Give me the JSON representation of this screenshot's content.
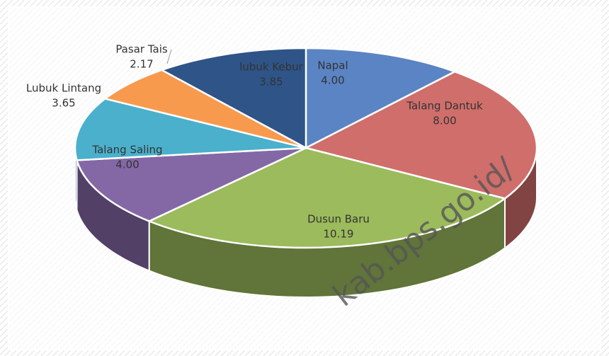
{
  "chart_data": {
    "type": "pie3d",
    "categories": [
      "Napal",
      "Talang Dantuk",
      "Dusun Baru",
      "Talang Saling",
      "Lubuk Lintang",
      "Pasar Tais",
      "lubuk Kebur"
    ],
    "values": [
      4.0,
      8.0,
      10.19,
      4.0,
      3.65,
      2.17,
      3.85
    ],
    "value_labels": [
      "4.00",
      "8.00",
      "10.19",
      "4.00",
      "3.65",
      "2.17",
      "3.85"
    ],
    "colors": [
      "#5a84c4",
      "#d06e6b",
      "#9cbb5c",
      "#8468a6",
      "#4bb0cc",
      "#f79a4e",
      "#2e5488"
    ]
  },
  "watermark": "kab.bps.go.id/"
}
